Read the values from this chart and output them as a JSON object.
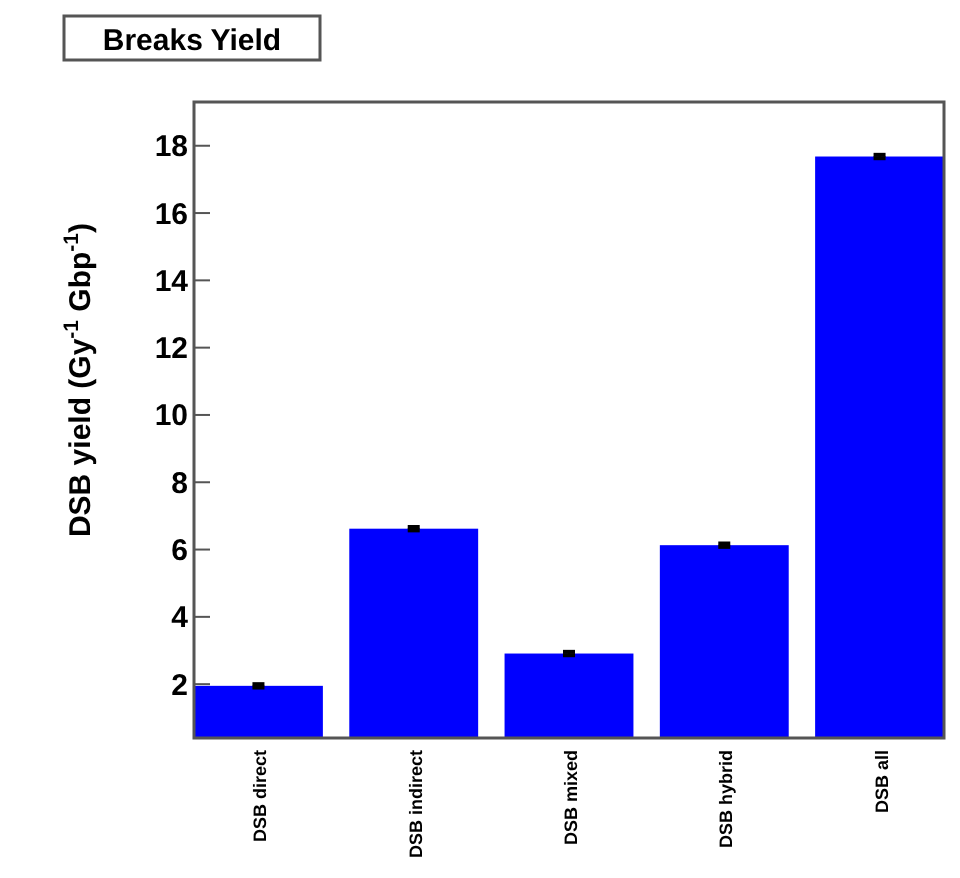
{
  "chart_data": {
    "type": "bar",
    "title": "Breaks Yield",
    "ylabel": "DSB yield (Gy$^{-1}$ Gbp$^{-1}$)",
    "categories": [
      "DSB direct",
      "DSB indirect",
      "DSB mixed",
      "DSB hybrid",
      "DSB all"
    ],
    "values": [
      1.95,
      6.62,
      2.91,
      6.13,
      17.68
    ],
    "errors": [
      0.05,
      0.05,
      0.05,
      0.05,
      0.05
    ],
    "color": "#0000ff",
    "ylim": [
      0.4,
      19.3
    ],
    "yticks": [
      2,
      4,
      6,
      8,
      10,
      12,
      14,
      16,
      18
    ],
    "grid": false
  }
}
